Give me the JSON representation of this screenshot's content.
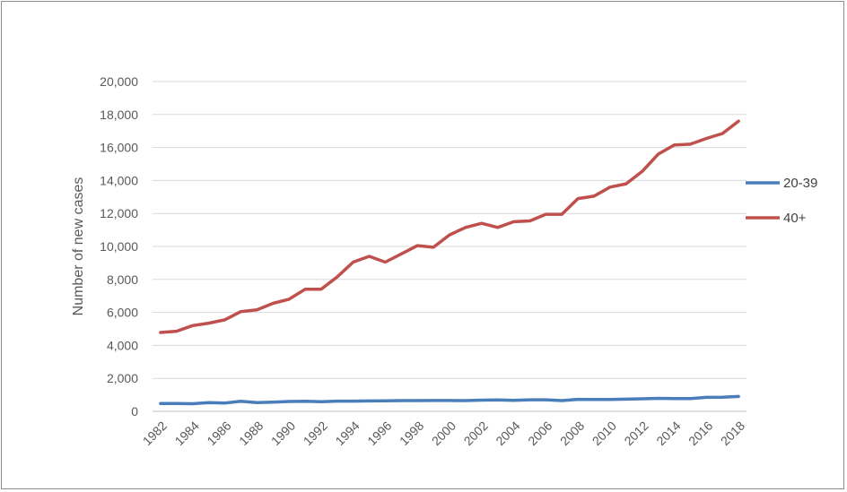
{
  "chart_data": {
    "type": "line",
    "title": "",
    "xlabel": "",
    "ylabel": "Number of new cases",
    "ylim": [
      0,
      20000
    ],
    "y_ticks": [
      0,
      2000,
      4000,
      6000,
      8000,
      10000,
      12000,
      14000,
      16000,
      18000,
      20000
    ],
    "y_tick_labels": [
      "0",
      "2,000",
      "4,000",
      "6,000",
      "8,000",
      "10,000",
      "12,000",
      "14,000",
      "16,000",
      "18,000",
      "20,000"
    ],
    "x": [
      1982,
      1983,
      1984,
      1985,
      1986,
      1987,
      1988,
      1989,
      1990,
      1991,
      1992,
      1993,
      1994,
      1995,
      1996,
      1997,
      1998,
      1999,
      2000,
      2001,
      2002,
      2003,
      2004,
      2005,
      2006,
      2007,
      2008,
      2009,
      2010,
      2011,
      2012,
      2013,
      2014,
      2015,
      2016,
      2017,
      2018
    ],
    "x_tick_labels": [
      "1982",
      "1984",
      "1986",
      "1988",
      "1990",
      "1992",
      "1994",
      "1996",
      "1998",
      "2000",
      "2002",
      "2004",
      "2006",
      "2008",
      "2010",
      "2012",
      "2014",
      "2016",
      "2018"
    ],
    "grid": true,
    "legend_position": "right",
    "series": [
      {
        "name": "20-39",
        "color": "#4a7ebb",
        "values": [
          480,
          480,
          460,
          530,
          500,
          610,
          530,
          560,
          600,
          610,
          580,
          620,
          620,
          630,
          640,
          650,
          650,
          660,
          660,
          650,
          680,
          690,
          670,
          700,
          700,
          650,
          730,
          720,
          720,
          740,
          760,
          790,
          770,
          770,
          850,
          860,
          900
        ]
      },
      {
        "name": "40+",
        "color": "#c0504d",
        "values": [
          4780,
          4860,
          5200,
          5350,
          5550,
          6050,
          6150,
          6550,
          6800,
          7400,
          7400,
          8150,
          9050,
          9400,
          9050,
          9550,
          10050,
          9950,
          10700,
          11150,
          11400,
          11150,
          11500,
          11550,
          11950,
          11950,
          12900,
          13050,
          13600,
          13800,
          14550,
          15600,
          16150,
          16200,
          16550,
          16850,
          17600
        ]
      }
    ]
  }
}
